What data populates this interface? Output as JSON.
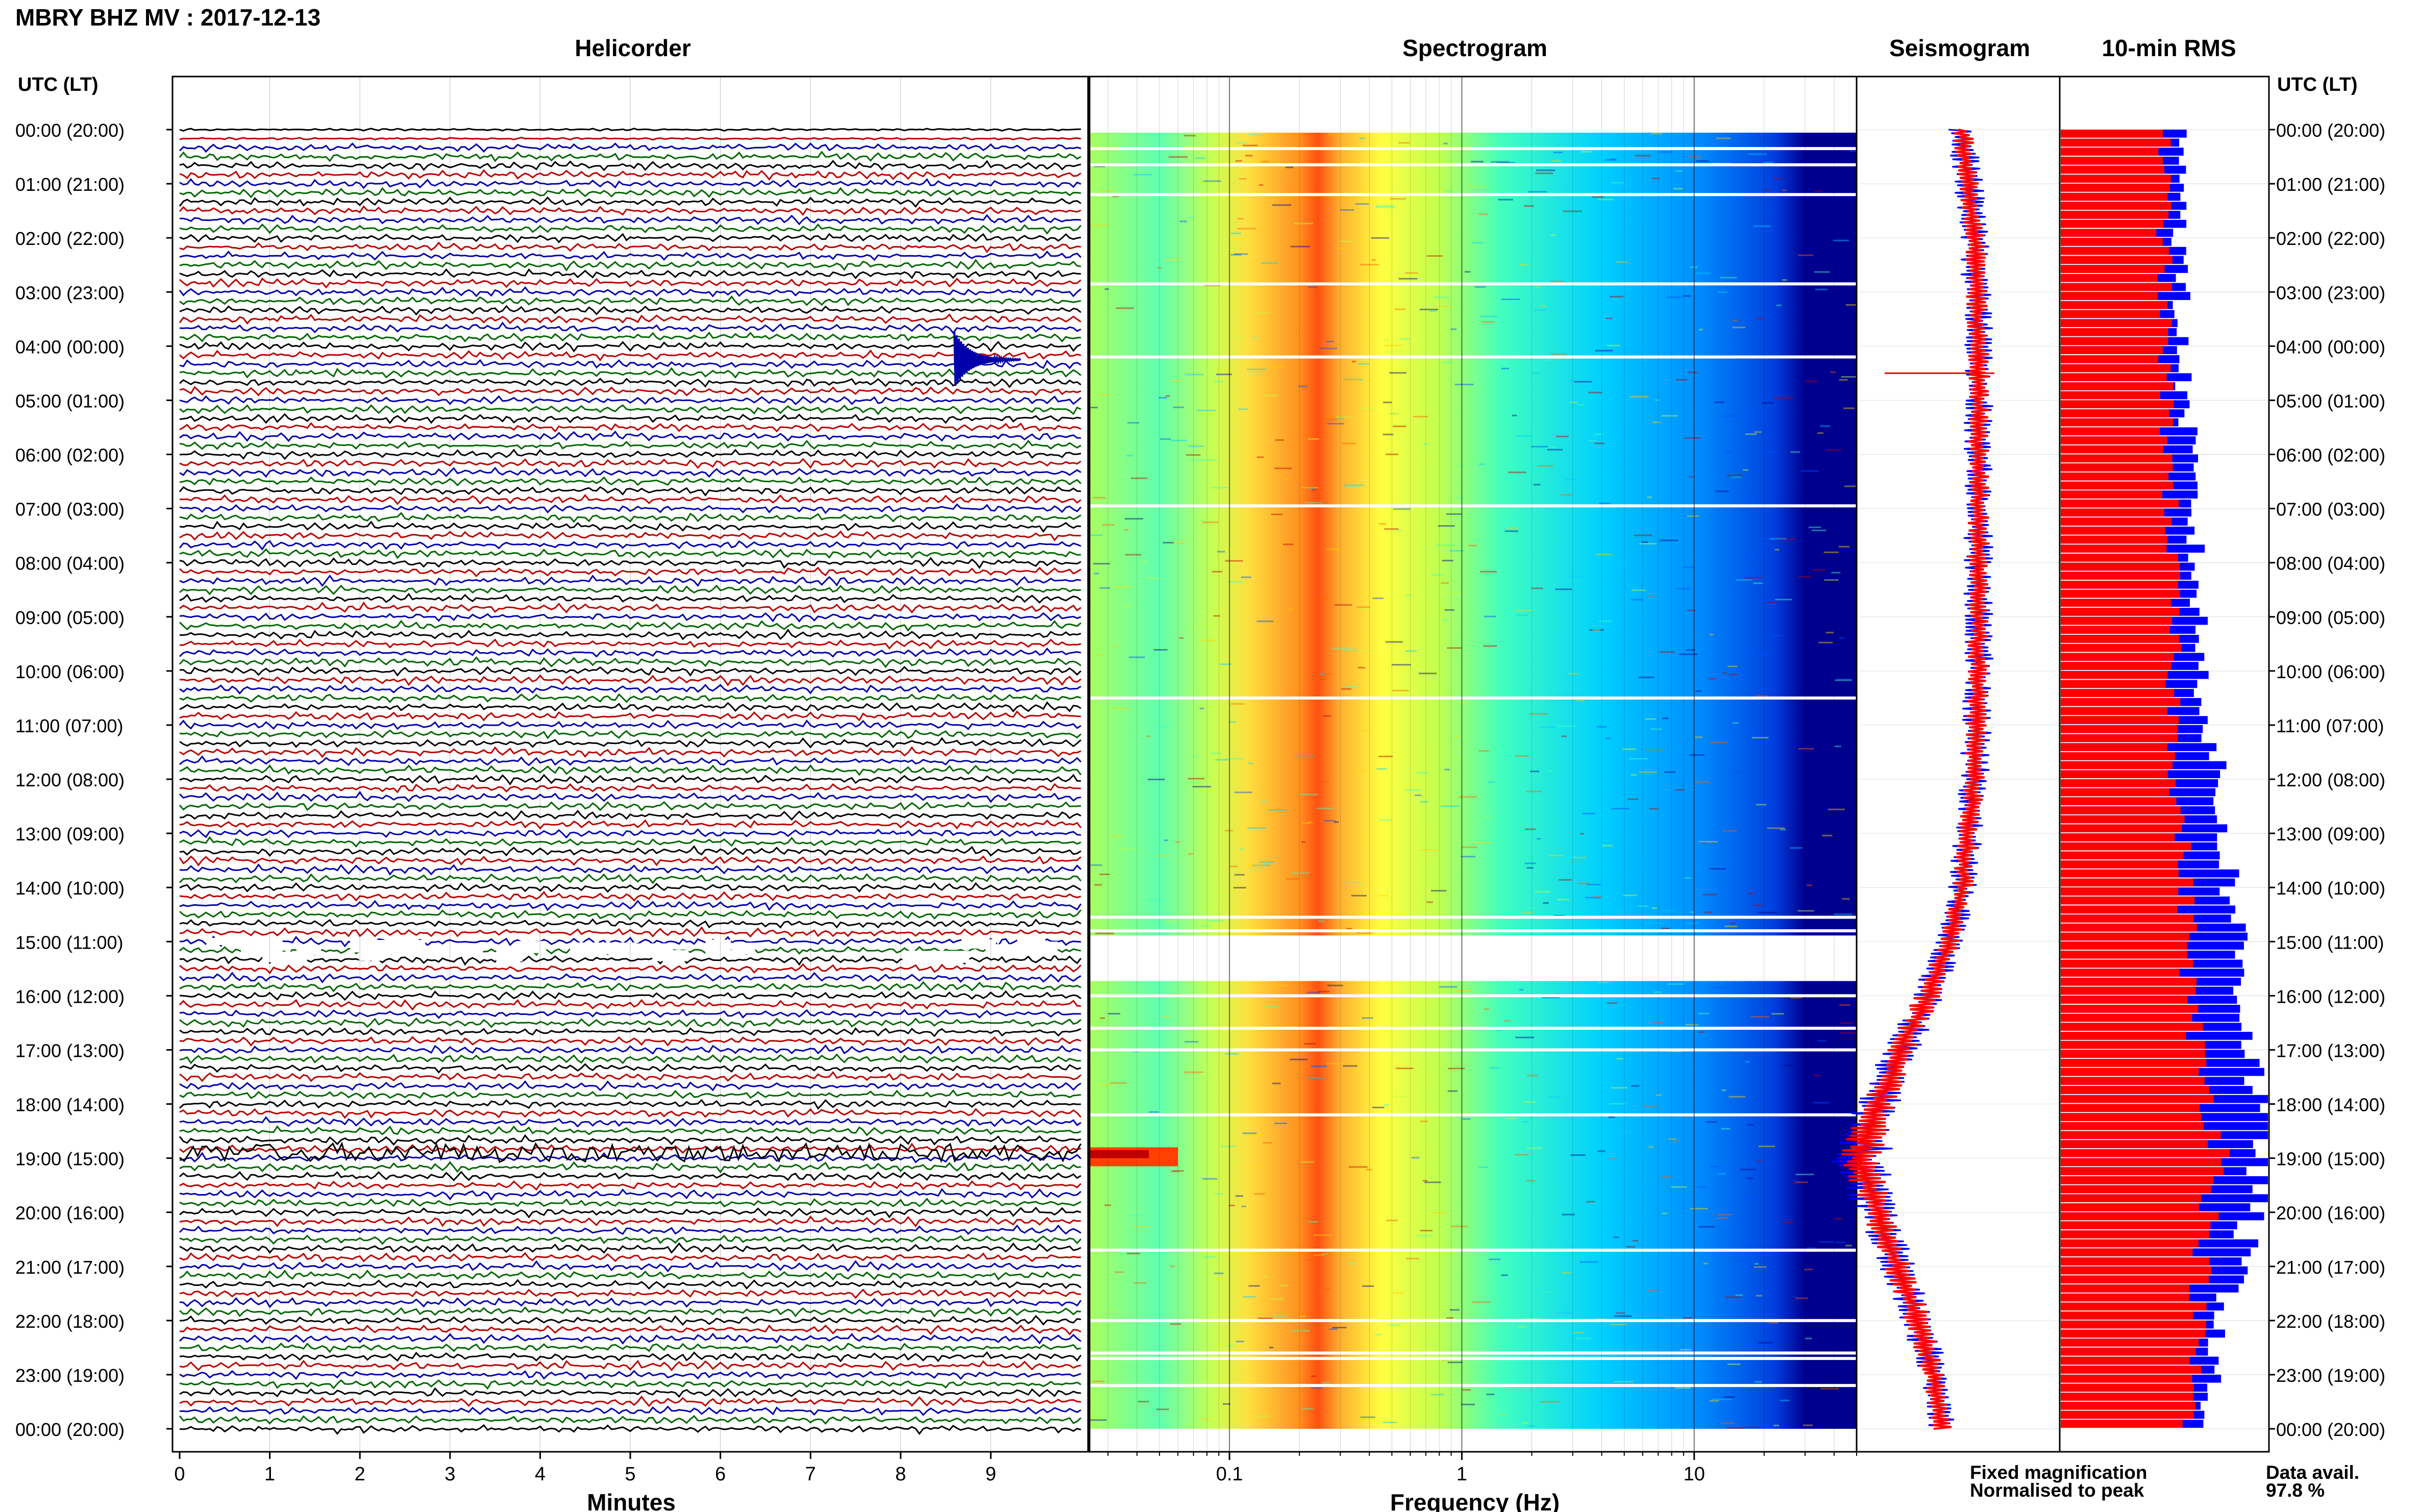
{
  "chart_data": [
    {
      "type": "line",
      "title": "Helicorder",
      "xlabel": "Minutes",
      "x_ticks": [
        "0",
        "1",
        "2",
        "3",
        "4",
        "5",
        "6",
        "7",
        "8",
        "9"
      ],
      "xlim": [
        0,
        10
      ],
      "trace_colors": [
        "#000000",
        "#bb0000",
        "#0000aa",
        "#006600"
      ],
      "rows_per_hour": 6,
      "gap_hours": [
        15.0,
        15.3
      ],
      "event_hours": [
        4.25,
        18.9
      ]
    },
    {
      "type": "heatmap",
      "title": "Spectrogram",
      "xlabel": "Frequency (Hz)",
      "x_ticks": [
        "0.1",
        "1",
        "10"
      ],
      "x_scale": "log",
      "xlim": [
        0.025,
        50
      ],
      "colormap": [
        "#00008f",
        "#0050ff",
        "#00cfff",
        "#40ffc0",
        "#c0ff40",
        "#ffd000",
        "#ff6000",
        "#c00000"
      ],
      "dominant_band_hz": [
        0.2,
        0.3
      ],
      "gaps_hours": [
        0.35,
        0.65,
        1.2,
        2.85,
        4.2,
        6.95,
        10.5,
        14.55,
        14.8,
        15.1,
        15.4,
        15.7,
        16.0,
        16.6,
        17.0,
        18.2,
        20.7,
        22.0,
        22.6,
        22.7,
        23.2
      ]
    },
    {
      "type": "line",
      "title": "Seismogram",
      "series": [
        {
          "color": "#0000ff",
          "hours": [
            0,
            2,
            4,
            6,
            8,
            10,
            12,
            14,
            15,
            16,
            17,
            18,
            19,
            20,
            21,
            22,
            23,
            24
          ],
          "offset": [
            0.52,
            0.58,
            0.6,
            0.6,
            0.6,
            0.6,
            0.58,
            0.52,
            0.46,
            0.35,
            0.22,
            0.1,
            0.02,
            0.1,
            0.2,
            0.3,
            0.38,
            0.42
          ],
          "amplitude": [
            0.05,
            0.05,
            0.05,
            0.05,
            0.05,
            0.05,
            0.05,
            0.05,
            0.05,
            0.06,
            0.06,
            0.08,
            0.1,
            0.07,
            0.06,
            0.06,
            0.05,
            0.05
          ]
        },
        {
          "color": "#ff0000",
          "hours": [
            0,
            2,
            4,
            6,
            8,
            10,
            12,
            14,
            15,
            16,
            17,
            18,
            19,
            20,
            21,
            22,
            23,
            24
          ],
          "offset": [
            0.52,
            0.58,
            0.6,
            0.6,
            0.6,
            0.6,
            0.58,
            0.52,
            0.46,
            0.35,
            0.22,
            0.1,
            0.02,
            0.1,
            0.2,
            0.3,
            0.38,
            0.42
          ],
          "amplitude": [
            0.035,
            0.035,
            0.035,
            0.035,
            0.035,
            0.035,
            0.035,
            0.035,
            0.035,
            0.045,
            0.045,
            0.06,
            0.07,
            0.05,
            0.045,
            0.045,
            0.035,
            0.035
          ]
        }
      ],
      "spike_hour": 4.5
    },
    {
      "type": "bar",
      "title": "10-min RMS",
      "orientation": "horizontal",
      "series": [
        {
          "name": "Fixed magnification",
          "color": "#0000ff",
          "hours": [
            0,
            2,
            4,
            6,
            8,
            10,
            12,
            14,
            15,
            16,
            17,
            18,
            19,
            20,
            21,
            22,
            23,
            24
          ],
          "values": [
            0.62,
            0.58,
            0.58,
            0.62,
            0.65,
            0.68,
            0.75,
            0.82,
            0.86,
            0.88,
            0.92,
            0.96,
            0.98,
            0.92,
            0.86,
            0.78,
            0.72,
            0.7
          ]
        },
        {
          "name": "Normalised to peak",
          "color": "#ff0000",
          "hours": [
            0,
            2,
            4,
            6,
            8,
            10,
            12,
            14,
            15,
            16,
            17,
            18,
            19,
            20,
            21,
            22,
            23,
            24
          ],
          "values": [
            0.5,
            0.5,
            0.5,
            0.52,
            0.54,
            0.54,
            0.56,
            0.6,
            0.62,
            0.62,
            0.66,
            0.72,
            0.78,
            0.72,
            0.68,
            0.66,
            0.64,
            0.62
          ]
        }
      ],
      "legend": "bottom"
    }
  ],
  "header": {
    "station_title": "MBRY BHZ MV : 2017-12-13",
    "axis_label_left": "UTC (LT)",
    "axis_label_right": "UTC (LT)"
  },
  "time_axis": {
    "ticks": [
      "00:00 (20:00)",
      "01:00 (21:00)",
      "02:00 (22:00)",
      "03:00 (23:00)",
      "04:00 (00:00)",
      "05:00 (01:00)",
      "06:00 (02:00)",
      "07:00 (03:00)",
      "08:00 (04:00)",
      "09:00 (05:00)",
      "10:00 (06:00)",
      "11:00 (07:00)",
      "12:00 (08:00)",
      "13:00 (09:00)",
      "14:00 (10:00)",
      "15:00 (11:00)",
      "16:00 (12:00)",
      "17:00 (13:00)",
      "18:00 (14:00)",
      "19:00 (15:00)",
      "20:00 (16:00)",
      "21:00 (17:00)",
      "22:00 (18:00)",
      "23:00 (19:00)",
      "00:00 (20:00)"
    ]
  },
  "legend": {
    "fixed": "Fixed magnification",
    "normalised": "Normalised to peak",
    "fixed_color": "#0000ff",
    "normalised_color": "#ff0000"
  },
  "availability": {
    "label": "Data avail.",
    "value": "97.8 %"
  }
}
